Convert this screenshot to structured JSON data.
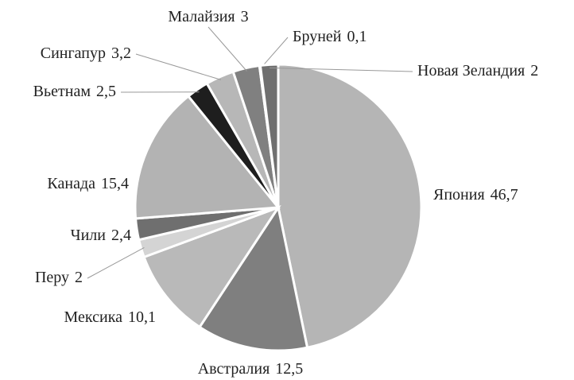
{
  "chart_data": {
    "type": "pie",
    "categories": [
      "Япония",
      "Австралия",
      "Мексика",
      "Перу",
      "Чили",
      "Канада",
      "Вьетнам",
      "Сингапур",
      "Малайзия",
      "Бруней",
      "Новая Зеландия"
    ],
    "values": [
      46.7,
      12.5,
      10.1,
      2,
      2.4,
      15.4,
      2.5,
      3.2,
      3,
      0.1,
      2
    ],
    "value_labels": [
      "46,7",
      "12,5",
      "10,1",
      "2",
      "2,4",
      "15,4",
      "2,5",
      "3,2",
      "3",
      "0,1",
      "2"
    ],
    "colors": [
      "#b5b5b5",
      "#7f7f7f",
      "#b9b9b9",
      "#d4d4d4",
      "#6f6f6f",
      "#b3b3b3",
      "#1e1e1e",
      "#b7b7b7",
      "#808080",
      "#9a9a9a",
      "#6f6f6f"
    ]
  }
}
